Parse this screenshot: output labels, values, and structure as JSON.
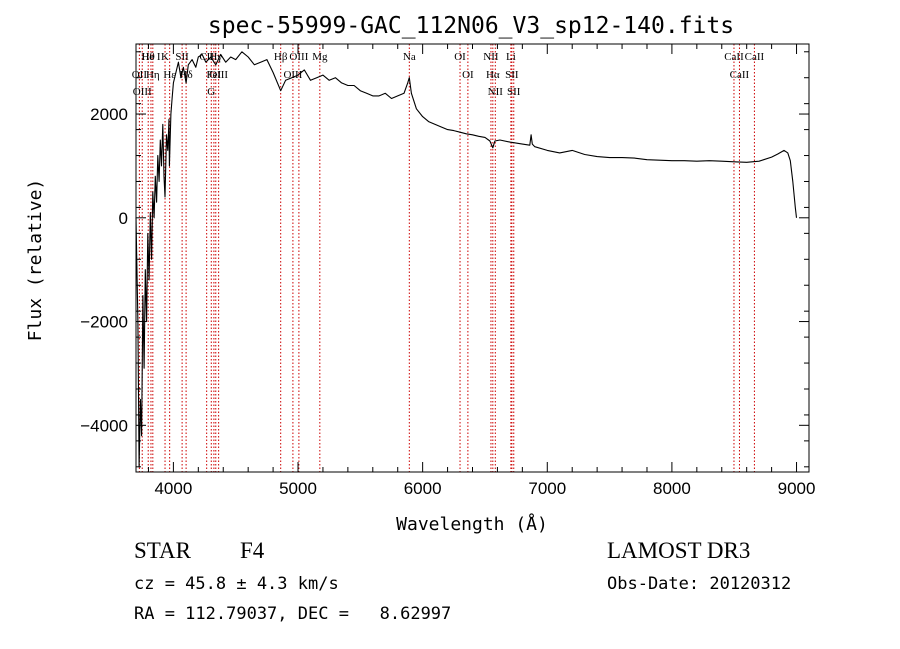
{
  "chart_data": {
    "type": "line",
    "title": "spec-55999-GAC_112N06_V3_sp12-140.fits",
    "xlabel": "Wavelength (Å)",
    "ylabel": "Flux (relative)",
    "xlim": [
      3700,
      9100
    ],
    "ylim": [
      -4900,
      3350
    ],
    "grid": false,
    "x_ticks": [
      4000,
      5000,
      6000,
      7000,
      8000,
      9000
    ],
    "y_ticks": [
      -4000,
      -2000,
      0,
      2000
    ],
    "x_tick_labels": [
      "4000",
      "5000",
      "6000",
      "7000",
      "8000",
      "9000"
    ],
    "y_tick_labels": [
      "−4000",
      "−2000",
      "0",
      "2000"
    ],
    "series": [
      {
        "name": "flux",
        "color": "#000000",
        "x": [
          3700,
          3715,
          3725,
          3735,
          3745,
          3755,
          3765,
          3775,
          3785,
          3795,
          3805,
          3815,
          3825,
          3835,
          3845,
          3855,
          3865,
          3875,
          3885,
          3895,
          3905,
          3915,
          3925,
          3933,
          3945,
          3955,
          3965,
          3968,
          3980,
          3990,
          4000,
          4020,
          4040,
          4060,
          4080,
          4102,
          4120,
          4150,
          4180,
          4200,
          4230,
          4260,
          4300,
          4340,
          4380,
          4420,
          4460,
          4500,
          4550,
          4600,
          4650,
          4700,
          4750,
          4800,
          4861,
          4900,
          4950,
          5000,
          5050,
          5100,
          5150,
          5200,
          5250,
          5300,
          5350,
          5400,
          5450,
          5500,
          5550,
          5600,
          5650,
          5700,
          5750,
          5800,
          5850,
          5880,
          5893,
          5910,
          5950,
          6000,
          6050,
          6100,
          6150,
          6200,
          6250,
          6300,
          6350,
          6400,
          6450,
          6500,
          6540,
          6563,
          6580,
          6620,
          6700,
          6800,
          6860,
          6870,
          6880,
          6900,
          7000,
          7100,
          7200,
          7300,
          7400,
          7500,
          7600,
          7700,
          7800,
          7900,
          8000,
          8100,
          8200,
          8300,
          8400,
          8500,
          8600,
          8700,
          8800,
          8850,
          8900,
          8930,
          8950,
          8970,
          8990,
          9000
        ],
        "values": [
          0,
          -2000,
          -4800,
          -3500,
          -4200,
          -1500,
          -2900,
          -1000,
          -2000,
          -300,
          -1200,
          100,
          -800,
          500,
          0,
          800,
          300,
          1200,
          700,
          1500,
          1000,
          1800,
          800,
          400,
          1600,
          1300,
          1900,
          1000,
          2000,
          2300,
          2600,
          2800,
          3000,
          2700,
          2900,
          2600,
          2950,
          3050,
          2900,
          3100,
          3150,
          3000,
          3100,
          2950,
          3150,
          3000,
          3100,
          3050,
          3200,
          3100,
          2950,
          3000,
          3050,
          2800,
          2450,
          2650,
          2700,
          2750,
          2850,
          2650,
          2700,
          2750,
          2650,
          2700,
          2600,
          2550,
          2550,
          2450,
          2400,
          2350,
          2350,
          2400,
          2300,
          2350,
          2400,
          2600,
          2700,
          2400,
          2100,
          1950,
          1850,
          1800,
          1750,
          1700,
          1680,
          1650,
          1620,
          1600,
          1570,
          1550,
          1480,
          1350,
          1480,
          1500,
          1460,
          1420,
          1400,
          1600,
          1420,
          1370,
          1300,
          1250,
          1300,
          1220,
          1180,
          1160,
          1160,
          1150,
          1120,
          1110,
          1100,
          1100,
          1090,
          1100,
          1090,
          1080,
          1070,
          1090,
          1170,
          1230,
          1300,
          1250,
          1100,
          700,
          200,
          0
        ]
      }
    ],
    "lines": [
      {
        "label": "Hθ",
        "x": 3798
      },
      {
        "label": "OII",
        "x": 3727
      },
      {
        "label": "OIII",
        "x": 3750
      },
      {
        "label": "He I",
        "x": 3820
      },
      {
        "label": "Hη",
        "x": 3835
      },
      {
        "label": "K",
        "x": 3933
      },
      {
        "label": "Hε",
        "x": 3970
      },
      {
        "label": "SII",
        "x": 4070
      },
      {
        "label": "Hδ",
        "x": 4102
      },
      {
        "label": "CII",
        "x": 4267
      },
      {
        "label": "FeI",
        "x": 4325
      },
      {
        "label": "G",
        "x": 4304
      },
      {
        "label": "Hγ",
        "x": 4340
      },
      {
        "label": "OIII",
        "x": 4363
      },
      {
        "label": "Hβ",
        "x": 4861
      },
      {
        "label": "OIII",
        "x": 4959
      },
      {
        "label": "OIII",
        "x": 5007
      },
      {
        "label": "Mg",
        "x": 5175
      },
      {
        "label": "Na",
        "x": 5893
      },
      {
        "label": "OI",
        "x": 6300
      },
      {
        "label": "OI",
        "x": 6363
      },
      {
        "label": "NII",
        "x": 6548
      },
      {
        "label": "Hα",
        "x": 6563
      },
      {
        "label": "NII",
        "x": 6583
      },
      {
        "label": "Li",
        "x": 6708
      },
      {
        "label": "SII",
        "x": 6716
      },
      {
        "label": "SII",
        "x": 6731
      },
      {
        "label": "CaII",
        "x": 8498
      },
      {
        "label": "CaII",
        "x": 8542
      },
      {
        "label": "CaII",
        "x": 8662
      }
    ],
    "line_color": "#cc0000"
  },
  "info": {
    "object_type": "STAR",
    "subclass": "F4",
    "survey": "LAMOST DR3",
    "cz": "cz = 45.8 ± 4.3 km/s",
    "obs_date": "Obs-Date: 20120312",
    "coords": "RA = 112.79037, DEC =   8.62997"
  }
}
